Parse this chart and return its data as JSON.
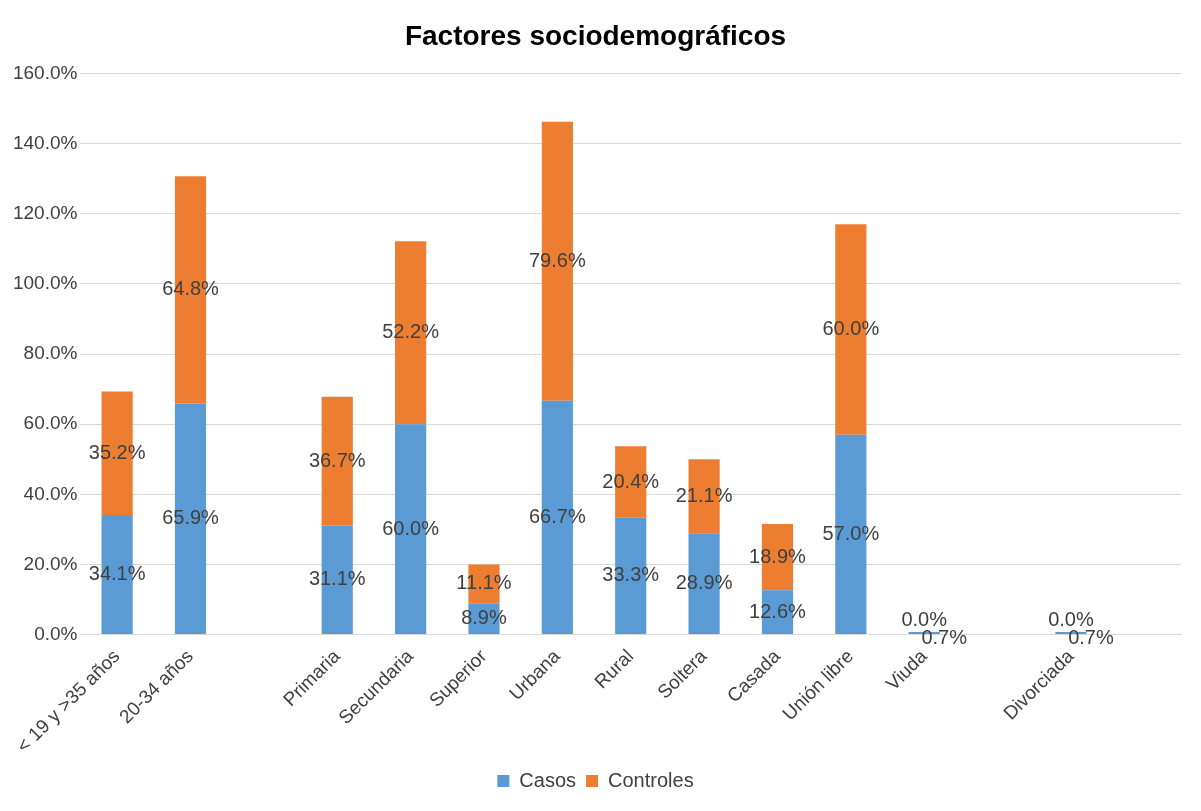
{
  "chart_data": {
    "type": "bar",
    "title": "Factores sociodemográficos",
    "stacked": true,
    "categories": [
      "< 19 y >35 años",
      "20-34 años",
      null,
      "Primaria",
      "Secundaria",
      "Superior",
      "Urbana",
      "Rural",
      "Soltera",
      "Casada",
      "Unión libre",
      "Viuda",
      null,
      "Divorciada",
      null
    ],
    "series": [
      {
        "name": "Casos",
        "color": "#5b9bd5",
        "values": [
          34.1,
          65.9,
          null,
          31.1,
          60.0,
          8.9,
          66.7,
          33.3,
          28.9,
          12.6,
          57.0,
          0.7,
          null,
          0.7,
          null
        ],
        "value_labels": [
          "34.1%",
          "65.9%",
          null,
          "31.1%",
          "60.0%",
          "8.9%",
          "66.7%",
          "33.3%",
          "28.9%",
          "12.6%",
          "57.0%",
          "0.7%",
          null,
          "0.7%",
          null
        ]
      },
      {
        "name": "Controles",
        "color": "#ed7d31",
        "values": [
          35.2,
          64.8,
          null,
          36.7,
          52.2,
          11.1,
          79.6,
          20.4,
          21.1,
          18.9,
          60.0,
          0.0,
          null,
          0.0,
          null
        ],
        "value_labels": [
          "35.2%",
          "64.8%",
          null,
          "36.7%",
          "52.2%",
          "11.1%",
          "79.6%",
          "20.4%",
          "21.1%",
          "18.9%",
          "60.0%",
          "0.0%",
          null,
          "0.0%",
          null
        ]
      }
    ],
    "ylim": [
      0,
      160
    ],
    "yticks": [
      {
        "value": 0,
        "label": "0.0%"
      },
      {
        "value": 20,
        "label": "20.0%"
      },
      {
        "value": 40,
        "label": "40.0%"
      },
      {
        "value": 60,
        "label": "60.0%"
      },
      {
        "value": 80,
        "label": "80.0%"
      },
      {
        "value": 100,
        "label": "100.0%"
      },
      {
        "value": 120,
        "label": "120.0%"
      },
      {
        "value": 140,
        "label": "140.0%"
      },
      {
        "value": 160,
        "label": "160.0%"
      }
    ],
    "grid": "y",
    "legend": "bottom"
  }
}
